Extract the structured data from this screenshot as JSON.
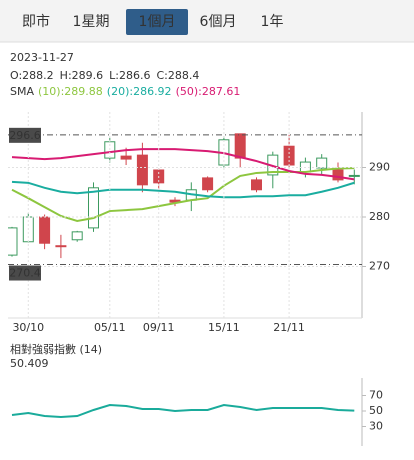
{
  "tabs": [
    "即市",
    "1星期",
    "1個月",
    "6個月",
    "1年"
  ],
  "active_tab": 2,
  "chart_data": [
    {
      "type": "candlestick",
      "date": "2023-11-27",
      "ohlc": [
        {
          "label": "O:",
          "value": 288.2
        },
        {
          "label": "H:",
          "value": 289.6
        },
        {
          "label": "L:",
          "value": 286.6
        },
        {
          "label": "C:",
          "value": 288.4
        }
      ],
      "sma_title": "SMA",
      "categories": [
        null,
        "30/10",
        null,
        null,
        null,
        null,
        "05/11",
        null,
        null,
        "09/11",
        null,
        null,
        null,
        "15/11",
        null,
        null,
        null,
        "21/11",
        null,
        null,
        null,
        null
      ],
      "open": [
        272.3,
        275,
        280,
        274.2,
        275.4,
        277.8,
        291.9,
        292.3,
        292.5,
        289.5,
        283.4,
        283.4,
        287.9,
        290.5,
        296.8,
        287.5,
        288.5,
        294.3,
        289.1,
        289.9,
        289.5,
        288.2
      ],
      "high": [
        278,
        280.8,
        280.5,
        276.4,
        277.2,
        287,
        296,
        294,
        295,
        289.8,
        284,
        287,
        288.2,
        296.3,
        296.8,
        288,
        293.2,
        296.6,
        292,
        292.7,
        291,
        289.6
      ],
      "low": [
        272,
        274.9,
        273.5,
        271.7,
        275,
        277,
        291,
        290.5,
        285,
        285.6,
        282.2,
        281.2,
        285,
        290,
        290,
        285,
        285.8,
        289.8,
        288,
        288.5,
        287,
        286.6
      ],
      "close": [
        277.8,
        280,
        274.7,
        274,
        277,
        285.9,
        295.2,
        291.7,
        286.5,
        286.9,
        283,
        285.5,
        285.5,
        295.6,
        291.9,
        285.5,
        292.5,
        290.5,
        291.1,
        291.9,
        287.5,
        288.4
      ],
      "up_color": "#3c9a5f",
      "down_color": "#d0454c",
      "series": [
        {
          "name": "(10):289.88",
          "color": "#8dc63f",
          "values": [
            285.5,
            283.8,
            282,
            280.2,
            279.2,
            279.8,
            281.2,
            281.4,
            281.6,
            282.2,
            282.8,
            283.4,
            283.8,
            286.3,
            288.3,
            288.9,
            289.1,
            289.1,
            289.1,
            289.5,
            289.8,
            289.88
          ]
        },
        {
          "name": "(20):286.92",
          "color": "#1aada0",
          "values": [
            287.1,
            286.9,
            285.9,
            285.1,
            284.8,
            285.1,
            285.5,
            285.5,
            285.5,
            285.3,
            285.1,
            284.6,
            284.2,
            284,
            284,
            284.2,
            284.2,
            284.4,
            284.4,
            285.1,
            285.9,
            286.92
          ]
        },
        {
          "name": "(50):287.61",
          "color": "#d81b72",
          "values": [
            292.1,
            291.9,
            291.7,
            291.9,
            292.3,
            292.7,
            293.1,
            293.5,
            293.7,
            293.7,
            293.7,
            293.5,
            293.3,
            292.9,
            292.1,
            291.3,
            290.3,
            289.3,
            288.7,
            288.5,
            288.1,
            287.61
          ]
        }
      ],
      "reference_lines": [
        296.6,
        270.4
      ],
      "ylim": [
        260,
        300
      ],
      "yticks": [
        270,
        280,
        290
      ],
      "grid": true
    },
    {
      "type": "line",
      "title": "相對強弱指數 (14)",
      "current": 50.409,
      "color": "#1aab9b",
      "values": [
        44.8,
        47.4,
        43.5,
        42.3,
        43.5,
        51.3,
        57.7,
        56.5,
        52.6,
        52.6,
        50,
        51.3,
        51.3,
        57.7,
        55.2,
        51.3,
        53.9,
        53.9,
        53.9,
        53.9,
        51.3,
        50.409
      ],
      "ylim": [
        10,
        90
      ],
      "yticks": [
        30,
        50,
        70
      ]
    }
  ]
}
